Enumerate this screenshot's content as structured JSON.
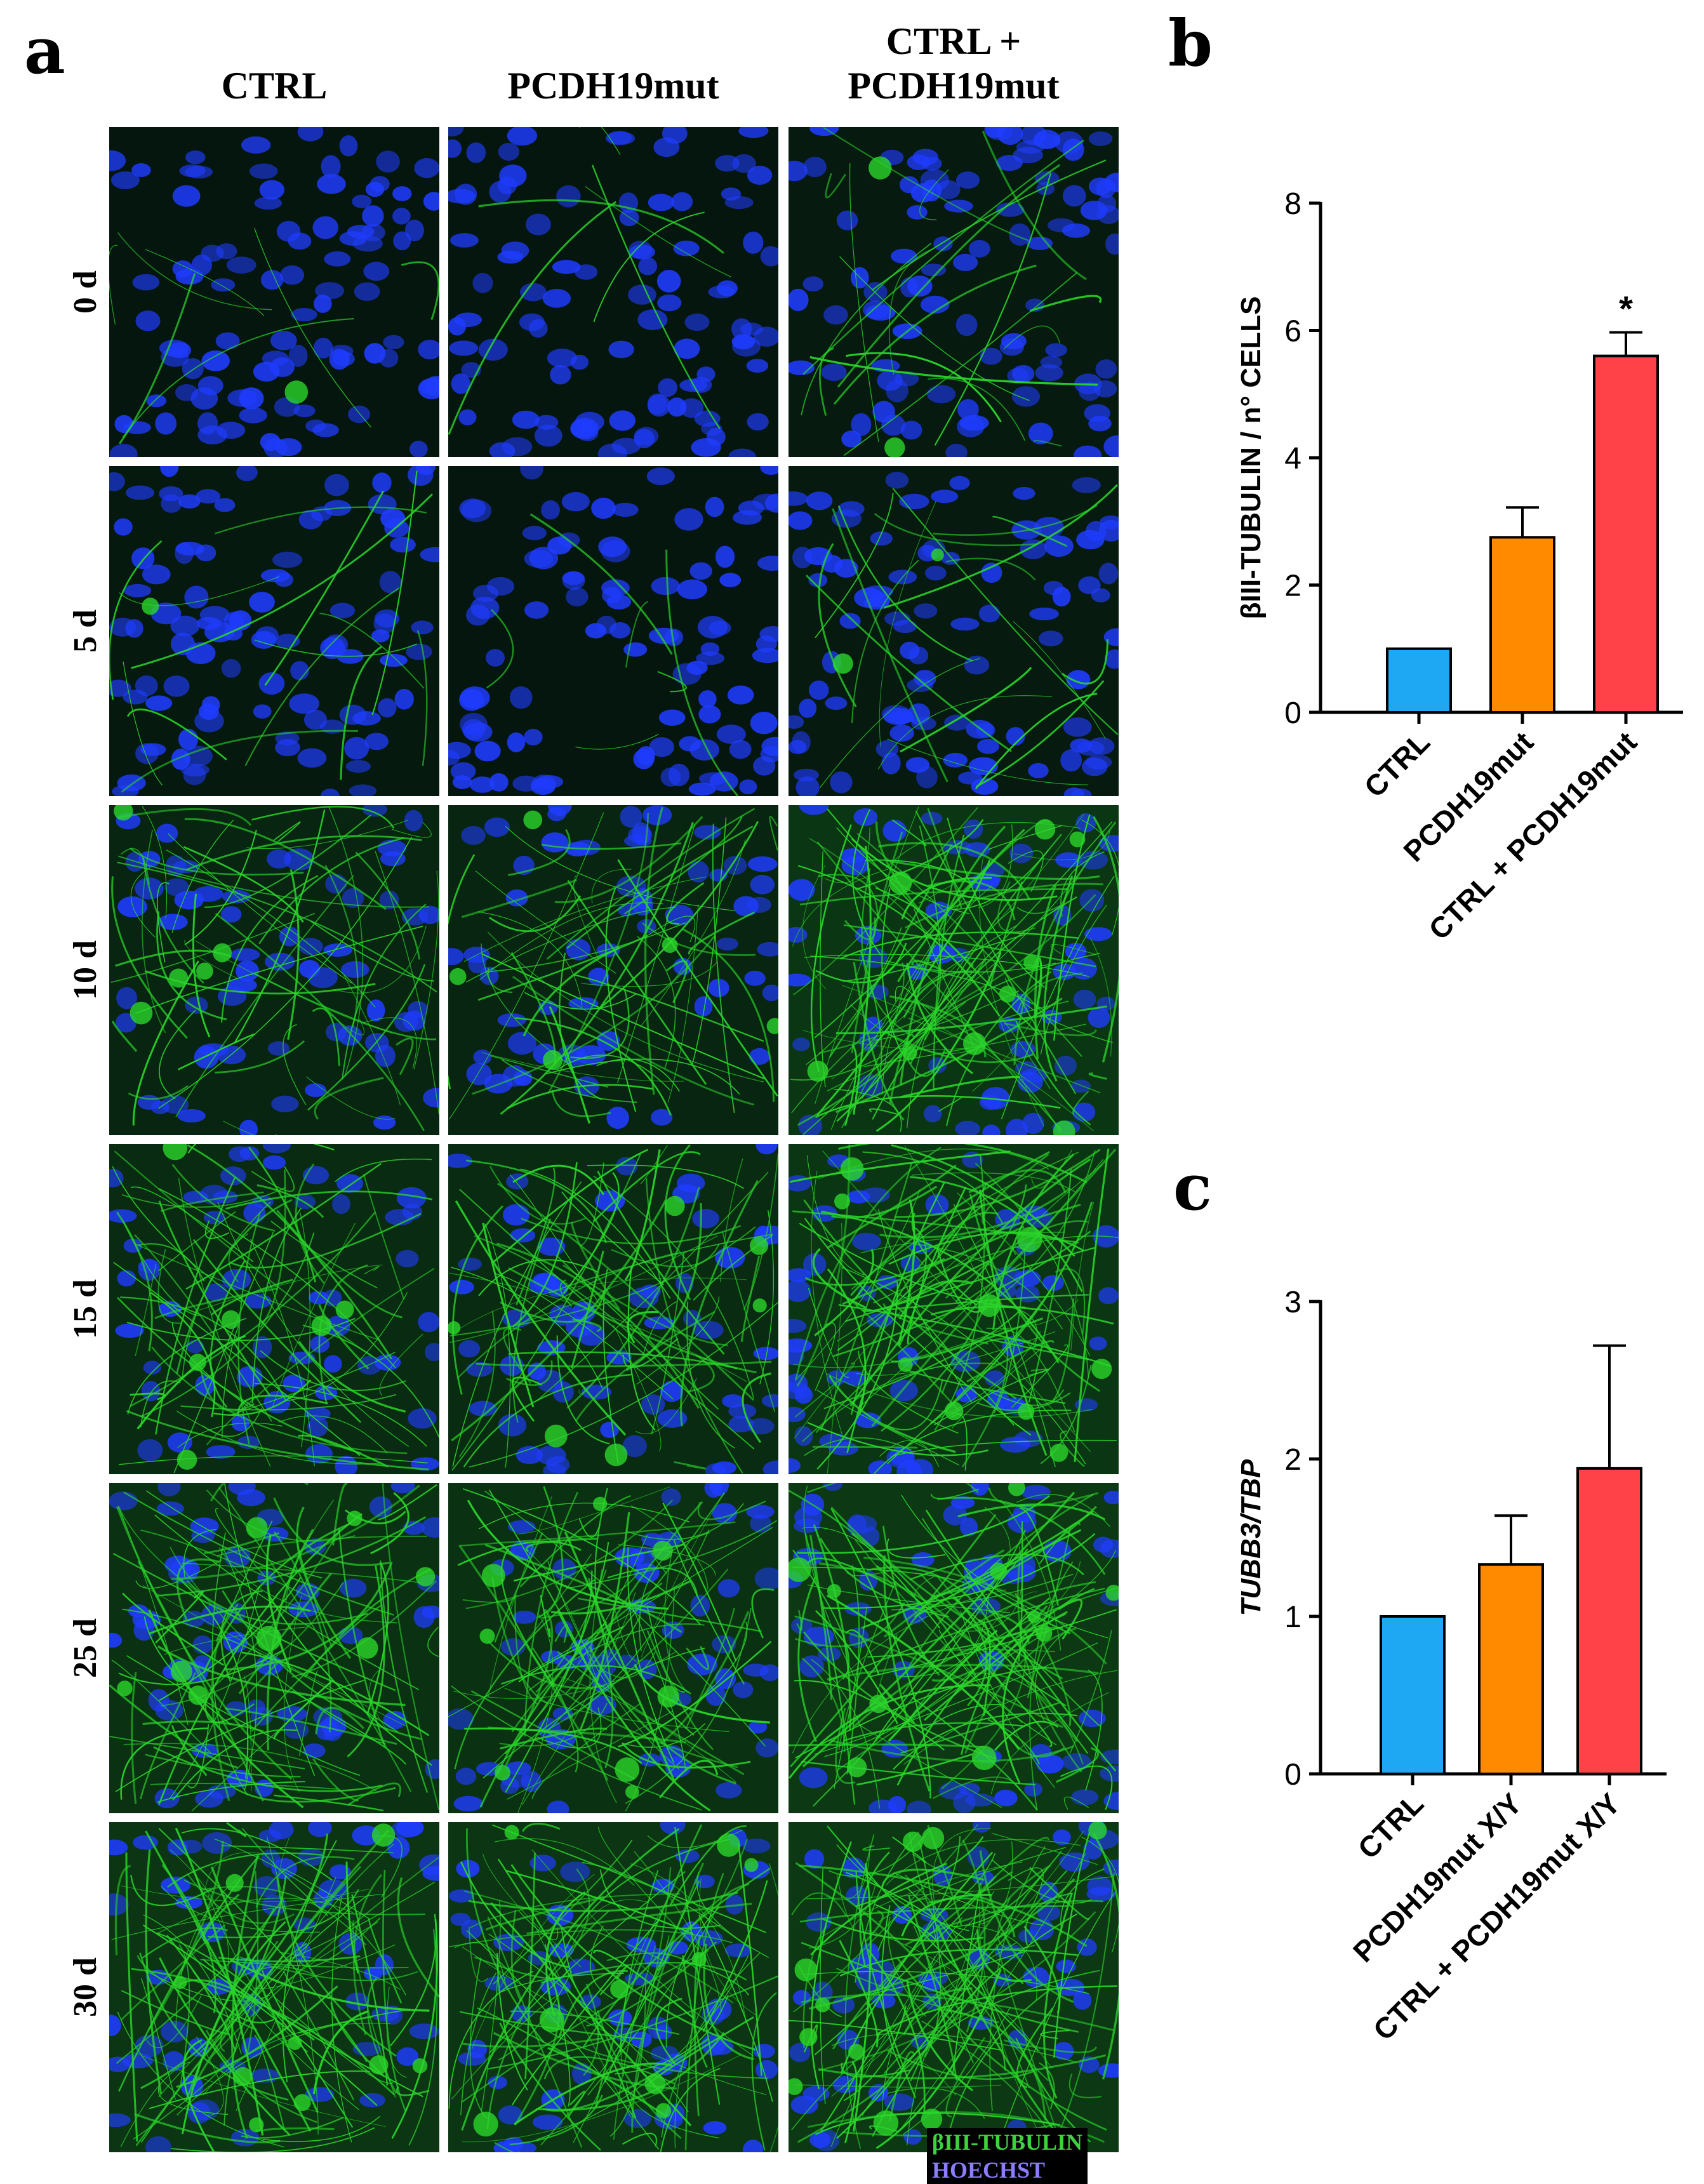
{
  "figure": {
    "panel_labels": [
      "a",
      "b",
      "c"
    ],
    "microscopy": {
      "columns": [
        "CTRL",
        "PCDH19mut",
        "CTRL +\nPCDH19mut"
      ],
      "rows": [
        "0 d",
        "5 d",
        "10 d",
        "15 d",
        "25 d",
        "30 d"
      ],
      "stain_legend": [
        "βIII-TUBULIN",
        "HOECHST"
      ],
      "colors": {
        "tubulin": "#2ad62a",
        "hoechst": "#1f3cff",
        "legend_tubulin": "#3ed23e",
        "legend_hoechst": "#8a7dff"
      }
    }
  },
  "chart_data": [
    {
      "panel": "b",
      "type": "bar",
      "categories": [
        "CTRL",
        "PCDH19mut",
        "CTRL + PCDH19mut"
      ],
      "values": [
        1.0,
        2.75,
        5.6
      ],
      "error_upper": [
        0.0,
        0.47,
        0.37
      ],
      "colors": [
        "#1ea7f2",
        "#ff8a00",
        "#ff4148"
      ],
      "annotations": [
        "",
        "",
        "*"
      ],
      "ylabel": "βIII-TUBULIN / n° CELLS",
      "xlabel": "",
      "ylim": [
        0,
        8
      ],
      "yticks": [
        0,
        2,
        4,
        6,
        8
      ],
      "grid": false
    },
    {
      "panel": "c",
      "type": "bar",
      "categories": [
        "CTRL",
        "PCDH19mut X/Y",
        "CTRL + PCDH19mut X/Y"
      ],
      "values": [
        1.0,
        1.33,
        1.94
      ],
      "error_upper": [
        0.0,
        0.31,
        0.78
      ],
      "colors": [
        "#1ea7f2",
        "#ff8a00",
        "#ff4148"
      ],
      "annotations": [
        "",
        "",
        ""
      ],
      "ylabel": "TUBB3/TBP",
      "xlabel": "",
      "ylim": [
        0,
        3
      ],
      "yticks": [
        0,
        1,
        2,
        3
      ],
      "grid": false
    }
  ]
}
